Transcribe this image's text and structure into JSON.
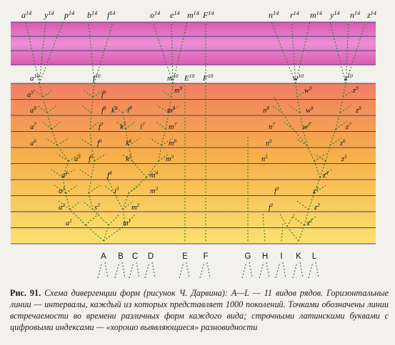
{
  "figure": {
    "top_labels": [
      {
        "base": "a",
        "sup": "14"
      },
      {
        "base": "y",
        "sup": "14"
      },
      {
        "base": "p",
        "sup": "14"
      },
      {
        "base": "b",
        "sup": "14"
      },
      {
        "base": "f",
        "sup": "14"
      },
      {
        "base": "o",
        "sup": "14"
      },
      {
        "base": "e",
        "sup": "14"
      },
      {
        "base": "m",
        "sup": "14"
      },
      {
        "base": "F",
        "sup": "14"
      },
      {
        "base": "n",
        "sup": "14"
      },
      {
        "base": "r",
        "sup": "14"
      },
      {
        "base": "m",
        "sup": "14"
      },
      {
        "base": "y",
        "sup": "14"
      },
      {
        "base": "n",
        "sup": "14"
      },
      {
        "base": "z",
        "sup": "14"
      }
    ],
    "mid_labels": [
      {
        "base": "a",
        "sup": "10"
      },
      {
        "base": "f",
        "sup": "10"
      },
      {
        "base": "m",
        "sup": "10"
      },
      {
        "base": "E",
        "sup": "10"
      },
      {
        "base": "F",
        "sup": "10"
      },
      {
        "base": "w",
        "sup": "10"
      },
      {
        "base": "z",
        "sup": "10"
      }
    ],
    "tree_labels": [
      {
        "base": "a",
        "sup": "9"
      },
      {
        "base": "a",
        "sup": "8"
      },
      {
        "base": "a",
        "sup": "7"
      },
      {
        "base": "a",
        "sup": "6"
      },
      {
        "base": "a",
        "sup": "5"
      },
      {
        "base": "a",
        "sup": "4"
      },
      {
        "base": "a",
        "sup": "3"
      },
      {
        "base": "a",
        "sup": "2"
      },
      {
        "base": "a",
        "sup": "1"
      },
      {
        "base": "f",
        "sup": "9"
      },
      {
        "base": "f",
        "sup": "8"
      },
      {
        "base": "f",
        "sup": "7"
      },
      {
        "base": "f",
        "sup": "6"
      },
      {
        "base": "f",
        "sup": "5"
      },
      {
        "base": "f",
        "sup": "4"
      },
      {
        "base": "s",
        "sup": "2"
      },
      {
        "base": "k",
        "sup": "8"
      },
      {
        "base": "i",
        "sup": "8"
      },
      {
        "base": "k",
        "sup": "7"
      },
      {
        "base": "i",
        "sup": "7"
      },
      {
        "base": "k",
        "sup": "6"
      },
      {
        "base": "k",
        "sup": "5"
      },
      {
        "base": "i",
        "sup": "3"
      },
      {
        "base": "m",
        "sup": "2"
      },
      {
        "base": "m",
        "sup": "9"
      },
      {
        "base": "m",
        "sup": "8"
      },
      {
        "base": "m",
        "sup": "7"
      },
      {
        "base": "m",
        "sup": "6"
      },
      {
        "base": "m",
        "sup": "5"
      },
      {
        "base": "m",
        "sup": "4"
      },
      {
        "base": "m",
        "sup": "3"
      },
      {
        "base": "m",
        "sup": "1"
      },
      {
        "base": "n",
        "sup": "8"
      },
      {
        "base": "n",
        "sup": "7"
      },
      {
        "base": "n",
        "sup": "6"
      },
      {
        "base": "n",
        "sup": "5"
      },
      {
        "base": "w",
        "sup": "9"
      },
      {
        "base": "w",
        "sup": "8"
      },
      {
        "base": "w",
        "sup": "7"
      },
      {
        "base": "z",
        "sup": "9"
      },
      {
        "base": "z",
        "sup": "8"
      },
      {
        "base": "z",
        "sup": "7"
      },
      {
        "base": "z",
        "sup": "6"
      },
      {
        "base": "z",
        "sup": "5"
      },
      {
        "base": "z",
        "sup": "4"
      },
      {
        "base": "z",
        "sup": "3"
      },
      {
        "base": "z",
        "sup": "2"
      },
      {
        "base": "z",
        "sup": "1"
      },
      {
        "base": "f",
        "sup": "3"
      },
      {
        "base": "f",
        "sup": "2"
      }
    ],
    "root_labels": [
      "A",
      "B",
      "C",
      "D",
      "E",
      "F",
      "G",
      "H",
      "I",
      "K",
      "L"
    ],
    "colors": {
      "band_top": "#d85ab0",
      "band_mid": "#ec8fd6",
      "grad_top": "#f07f63",
      "grad_mid": "#f6b04a",
      "grad_bottom": "#fae170",
      "line": "#4d3b8c",
      "dot": "#3d7a2a"
    }
  },
  "caption": {
    "label": "Рис. 91.",
    "text_1": " Схема дивергенции форм (рисунок Ч. Дарвина): ",
    "species": "A—L",
    "text_2": " — 11 видов рядов. Горизонтальные линии — интервалы, каждый из которых представляет 1000 поколений. Точками обозначены линии встречаемости во времени различных форм каждого вида; строчными латинскими буквами с цифровыми индексами — «хорошо выявляющиеся» разновидности"
  }
}
